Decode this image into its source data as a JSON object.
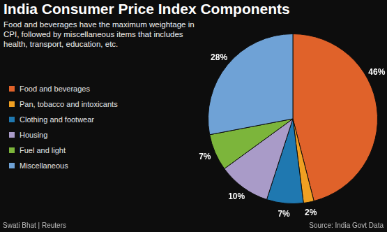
{
  "chart_data": {
    "type": "pie",
    "title": "India Consumer Price Index Components",
    "subtitle": "Food and beverages have the maximum weightage in CPI, followed by miscellaneous items that includes health, transport, education, etc.",
    "categories": [
      "Food and beverages",
      "Pan, tobacco and intoxicants",
      "Clothing and footwear",
      "Housing",
      "Fuel and light",
      "Miscellaneous"
    ],
    "values": [
      46,
      2,
      7,
      10,
      7,
      28
    ],
    "value_labels": [
      "46%",
      "2%",
      "7%",
      "10%",
      "7%",
      "28%"
    ],
    "colors": [
      "#e0622a",
      "#f0a022",
      "#1f78b0",
      "#a99bc8",
      "#7cb53b",
      "#6fa2d6"
    ],
    "legend": "left",
    "data_labels": true,
    "annotations": [
      "Swati Bhat | Reuters",
      "Source: India Govt Data"
    ]
  }
}
